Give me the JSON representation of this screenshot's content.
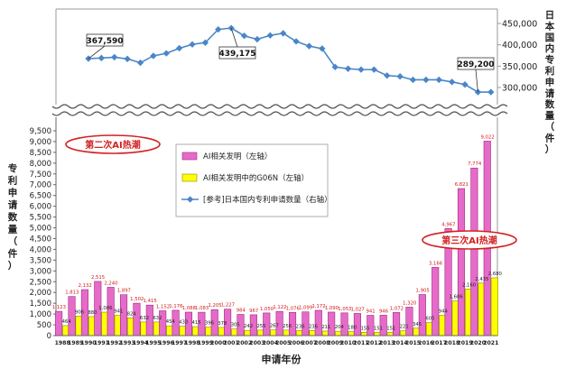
{
  "chart_data": {
    "type": "bar+line",
    "categories": [
      "1988",
      "1989",
      "1990",
      "1991",
      "1992",
      "1993",
      "1994",
      "1995",
      "1996",
      "1997",
      "1998",
      "1999",
      "2000",
      "2001",
      "2002",
      "2003",
      "2004",
      "2005",
      "2006",
      "2007",
      "2008",
      "2009",
      "2010",
      "2011",
      "2012",
      "2013",
      "2014",
      "2015",
      "2016",
      "2017",
      "2018",
      "2019",
      "2020",
      "2021"
    ],
    "series": [
      {
        "name": "AI相关发明（左轴）",
        "axis": "left",
        "kind": "bar",
        "color": "#e66bc9",
        "values": [
          1123,
          1813,
          2132,
          2515,
          2240,
          1897,
          1502,
          1415,
          1152,
          1176,
          1088,
          1083,
          1205,
          1227,
          984,
          967,
          1050,
          1122,
          1076,
          1099,
          1172,
          1090,
          1053,
          1027,
          941,
          946,
          1072,
          1320,
          1905,
          3166,
          4967,
          6821,
          7774,
          9022
        ],
        "labels": [
          "1,123",
          "1,813",
          "2,132",
          "2,515",
          "2,240",
          "1,897",
          "1,502",
          "1,415",
          "1,152",
          "1,176",
          "1,088",
          "1,083",
          "1,205",
          "1,227",
          "984",
          "967",
          "1,050",
          "1,122",
          "1,076",
          "1,099",
          "1,172",
          "1,090",
          "1,053",
          "1,027",
          "941",
          "946",
          "1,072",
          "1,320",
          "1,905",
          "3,166",
          "4,967",
          "6,821",
          "7,774",
          "9,022"
        ]
      },
      {
        "name": "AI相关发明中的G06N（左轴）",
        "axis": "left",
        "kind": "bar",
        "color": "#ffff00",
        "values": [
          464,
          906,
          880,
          1086,
          941,
          824,
          632,
          632,
          454,
          433,
          415,
          396,
          378,
          305,
          242,
          255,
          267,
          256,
          236,
          236,
          211,
          204,
          180,
          155,
          151,
          151,
          221,
          345,
          605,
          944,
          1606,
          2160,
          2435,
          2680
        ],
        "labels": [
          "464",
          "906",
          "880",
          "1,086",
          "941",
          "824",
          "632",
          "632",
          "454",
          "433",
          "415",
          "396",
          "378",
          "305",
          "242",
          "255",
          "267",
          "256",
          "236",
          "236",
          "211",
          "204",
          "180",
          "155",
          "151",
          "151",
          "221",
          "345",
          "605",
          "944",
          "1,606",
          "2,160",
          "2,435",
          "2,680"
        ]
      },
      {
        "name": "[参考]日本国内专利申请数量（右轴）",
        "axis": "right",
        "kind": "line",
        "color": "#4a86c8",
        "values": [
          null,
          null,
          367590,
          369000,
          371000,
          367000,
          358000,
          374000,
          380000,
          392000,
          401000,
          405000,
          436000,
          439175,
          421000,
          413000,
          422000,
          427000,
          408000,
          397000,
          391000,
          348000,
          344000,
          342000,
          342000,
          328000,
          326000,
          318000,
          318000,
          318000,
          313000,
          307000,
          289200,
          289200
        ]
      }
    ],
    "left_axis": {
      "min": 0,
      "max": 9500,
      "step": 500,
      "ticks": [
        "0",
        "500",
        "1,000",
        "1,500",
        "2,000",
        "2,500",
        "3,000",
        "3,500",
        "4,000",
        "4,500",
        "5,000",
        "5,500",
        "6,000",
        "6,500",
        "7,000",
        "7,500",
        "8,000",
        "8,500",
        "9,000",
        "9,500"
      ],
      "label": "专利申请数量（件）"
    },
    "right_axis": {
      "min": 300000,
      "max": 450000,
      "step": 50000,
      "ticks": [
        "300,000",
        "350,000",
        "400,000",
        "450,000"
      ],
      "label": "日本国内专利申请数量（件）"
    },
    "xlabel": "申请年份",
    "callouts": [
      "367,590",
      "439,175",
      "289,200"
    ],
    "annotations": [
      "第二次AI热潮",
      "第三次AI热潮"
    ],
    "legend_placement": "center",
    "grid": false
  }
}
